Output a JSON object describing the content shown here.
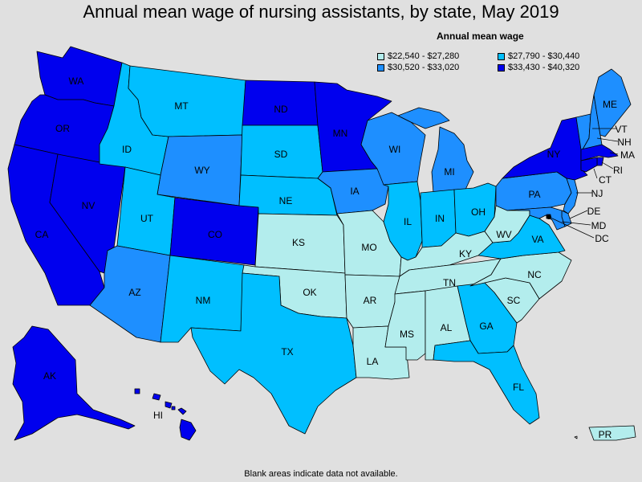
{
  "title": "Annual mean wage of nursing assistants, by state, May 2019",
  "legend": {
    "title": "Annual mean wage",
    "items": [
      {
        "label": "$22,540 - $27,280",
        "color": "#b3eded"
      },
      {
        "label": "$27,790 - $30,440",
        "color": "#00bfff"
      },
      {
        "label": "$30,520 - $33,020",
        "color": "#1e8fff"
      },
      {
        "label": "$33,430 - $40,320",
        "color": "#0000ee"
      }
    ]
  },
  "footnote": "Blank areas indicate data not available.",
  "states": [
    {
      "abbr": "WA",
      "bin": 3
    },
    {
      "abbr": "OR",
      "bin": 3
    },
    {
      "abbr": "CA",
      "bin": 3
    },
    {
      "abbr": "NV",
      "bin": 3
    },
    {
      "abbr": "ID",
      "bin": 1
    },
    {
      "abbr": "MT",
      "bin": 1
    },
    {
      "abbr": "WY",
      "bin": 2
    },
    {
      "abbr": "UT",
      "bin": 1
    },
    {
      "abbr": "AZ",
      "bin": 2
    },
    {
      "abbr": "CO",
      "bin": 3
    },
    {
      "abbr": "NM",
      "bin": 1
    },
    {
      "abbr": "ND",
      "bin": 3
    },
    {
      "abbr": "SD",
      "bin": 1
    },
    {
      "abbr": "NE",
      "bin": 1
    },
    {
      "abbr": "KS",
      "bin": 0
    },
    {
      "abbr": "OK",
      "bin": 0
    },
    {
      "abbr": "TX",
      "bin": 1
    },
    {
      "abbr": "MN",
      "bin": 3
    },
    {
      "abbr": "IA",
      "bin": 2
    },
    {
      "abbr": "MO",
      "bin": 0
    },
    {
      "abbr": "AR",
      "bin": 0
    },
    {
      "abbr": "LA",
      "bin": 0
    },
    {
      "abbr": "WI",
      "bin": 2
    },
    {
      "abbr": "IL",
      "bin": 1
    },
    {
      "abbr": "MI",
      "bin": 2
    },
    {
      "abbr": "IN",
      "bin": 1
    },
    {
      "abbr": "OH",
      "bin": 1
    },
    {
      "abbr": "KY",
      "bin": 0
    },
    {
      "abbr": "TN",
      "bin": 0
    },
    {
      "abbr": "MS",
      "bin": 0
    },
    {
      "abbr": "AL",
      "bin": 0
    },
    {
      "abbr": "GA",
      "bin": 1
    },
    {
      "abbr": "FL",
      "bin": 1
    },
    {
      "abbr": "SC",
      "bin": 0
    },
    {
      "abbr": "NC",
      "bin": 0
    },
    {
      "abbr": "VA",
      "bin": 1
    },
    {
      "abbr": "WV",
      "bin": 0
    },
    {
      "abbr": "PA",
      "bin": 2
    },
    {
      "abbr": "NY",
      "bin": 3
    },
    {
      "abbr": "VT",
      "bin": 2
    },
    {
      "abbr": "NH",
      "bin": 2
    },
    {
      "abbr": "ME",
      "bin": 2
    },
    {
      "abbr": "MA",
      "bin": 3
    },
    {
      "abbr": "RI",
      "bin": 3
    },
    {
      "abbr": "CT",
      "bin": 3
    },
    {
      "abbr": "NJ",
      "bin": 2
    },
    {
      "abbr": "DE",
      "bin": 2
    },
    {
      "abbr": "MD",
      "bin": 2
    },
    {
      "abbr": "DC",
      "bin": 3
    },
    {
      "abbr": "AK",
      "bin": 3
    },
    {
      "abbr": "HI",
      "bin": 3
    },
    {
      "abbr": "PR",
      "bin": 0
    }
  ]
}
